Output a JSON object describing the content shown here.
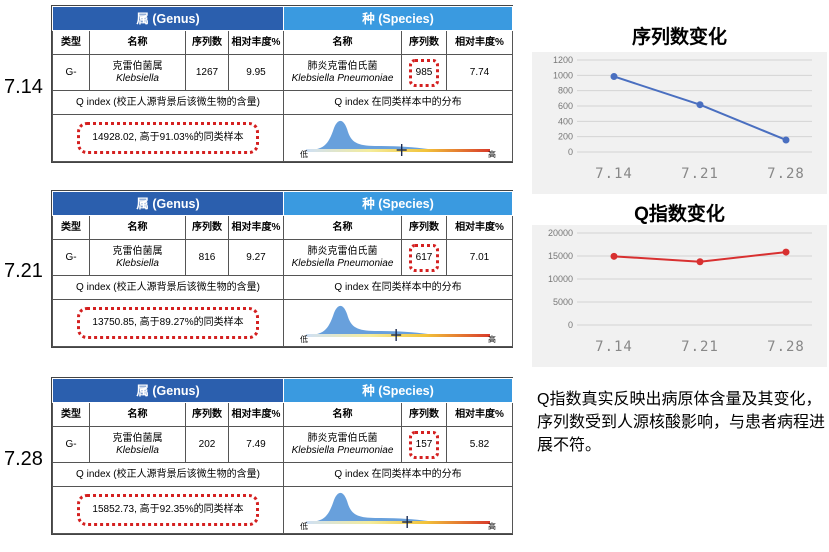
{
  "reports": [
    {
      "date": "7.14",
      "genus_header": "属 (Genus)",
      "species_header": "种 (Species)",
      "col_type": "类型",
      "col_name": "名称",
      "col_reads": "序列数",
      "col_abund": "相对丰度%",
      "col_sp_name": "名称",
      "col_sp_reads": "序列数",
      "col_sp_abund": "相对丰度%",
      "type": "G-",
      "genus_cn": "克雷伯菌属",
      "genus_latin": "Klebsiella",
      "genus_reads": "1267",
      "genus_abund": "9.95",
      "species_cn": "肺炎克雷伯氏菌",
      "species_latin": "Klebsiella Pneumoniae",
      "species_reads": "985",
      "species_abund": "7.74",
      "qindex_label": "Q index (校正人源背景后该微生物的含量)",
      "dist_label": "Q index 在同类样本中的分布",
      "qindex_value": "14928.02, 高于91.03%的同类样本",
      "low": "低",
      "high": "高",
      "marker_pos": 0.52
    },
    {
      "date": "7.21",
      "genus_header": "属 (Genus)",
      "species_header": "种 (Species)",
      "col_type": "类型",
      "col_name": "名称",
      "col_reads": "序列数",
      "col_abund": "相对丰度%",
      "col_sp_name": "名称",
      "col_sp_reads": "序列数",
      "col_sp_abund": "相对丰度%",
      "type": "G-",
      "genus_cn": "克雷伯菌属",
      "genus_latin": "Klebsiella",
      "genus_reads": "816",
      "genus_abund": "9.27",
      "species_cn": "肺炎克雷伯氏菌",
      "species_latin": "Klebsiella Pneumoniae",
      "species_reads": "617",
      "species_abund": "7.01",
      "qindex_label": "Q index (校正人源背景后该微生物的含量)",
      "dist_label": "Q index 在同类样本中的分布",
      "qindex_value": "13750.85, 高于89.27%的同类样本",
      "low": "低",
      "high": "高",
      "marker_pos": 0.49
    },
    {
      "date": "7.28",
      "genus_header": "属 (Genus)",
      "species_header": "种 (Species)",
      "col_type": "类型",
      "col_name": "名称",
      "col_reads": "序列数",
      "col_abund": "相对丰度%",
      "col_sp_name": "名称",
      "col_sp_reads": "序列数",
      "col_sp_abund": "相对丰度%",
      "type": "G-",
      "genus_cn": "克雷伯菌属",
      "genus_latin": "Klebsiella",
      "genus_reads": "202",
      "genus_abund": "7.49",
      "species_cn": "肺炎克雷伯氏菌",
      "species_latin": "Klebsiella Pneumoniae",
      "species_reads": "157",
      "species_abund": "5.82",
      "qindex_label": "Q index (校正人源背景后该微生物的含量)",
      "dist_label": "Q index 在同类样本中的分布",
      "qindex_value": "15852.73, 高于92.35%的同类样本",
      "low": "低",
      "high": "高",
      "marker_pos": 0.55
    }
  ],
  "caption": "Q指数真实反映出病原体含量及其变化，序列数受到人源核酸影响，与患者病程进展不符。",
  "chart_data": [
    {
      "type": "line",
      "title": "序列数变化",
      "categories": [
        "7.14",
        "7.21",
        "7.28"
      ],
      "values": [
        985,
        617,
        157
      ],
      "yticks": [
        0,
        200,
        400,
        600,
        800,
        1000,
        1200
      ],
      "ylim": [
        0,
        1200
      ],
      "color": "#4a6fc0",
      "grid": true
    },
    {
      "type": "line",
      "title": "Q指数变化",
      "categories": [
        "7.14",
        "7.21",
        "7.28"
      ],
      "values": [
        14928.02,
        13750.85,
        15852.73
      ],
      "yticks": [
        0,
        5000,
        10000,
        15000,
        20000
      ],
      "ylim": [
        0,
        20000
      ],
      "color": "#d83030",
      "grid": true
    }
  ]
}
